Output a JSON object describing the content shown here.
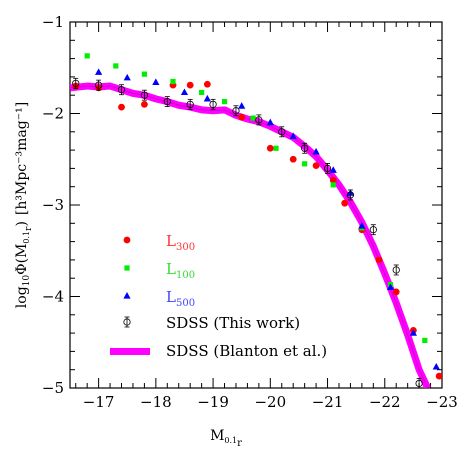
{
  "chart_data": {
    "type": "scatter",
    "xlabel": "M",
    "xlabel_sub": "0.1",
    "xlabel_sub2": "r",
    "ylabel_main": "log",
    "ylabel_sub": "10",
    "ylabel_phi": "Φ(M",
    "ylabel_sub3": "0.1",
    "ylabel_sub4": "r",
    "ylabel_close": ")",
    "ylabel_units": "[h³Mpc⁻³mag⁻¹]",
    "xlim": [
      -16.5,
      -23
    ],
    "ylim": [
      -5,
      -1
    ],
    "xticks": [
      -17,
      -18,
      -19,
      -20,
      -21,
      -22,
      -23
    ],
    "yticks": [
      -1,
      -2,
      -3,
      -4,
      -5
    ],
    "legend_position": "lower-left",
    "series": [
      {
        "name": "L",
        "name_sub": "300",
        "marker": "circle",
        "color": "#ff0000",
        "x": [
          -16.6,
          -17.0,
          -17.4,
          -17.8,
          -18.3,
          -18.6,
          -18.9,
          -19.5,
          -20.0,
          -20.4,
          -20.8,
          -21.1,
          -21.3,
          -21.6,
          -21.9,
          -22.2,
          -22.5,
          -22.95
        ],
        "y": [
          -1.7,
          -1.72,
          -1.93,
          -1.9,
          -1.69,
          -1.69,
          -1.68,
          -2.04,
          -2.38,
          -2.5,
          -2.57,
          -2.73,
          -2.98,
          -3.27,
          -3.6,
          -3.95,
          -4.37,
          -4.87
        ]
      },
      {
        "name": "L",
        "name_sub": "100",
        "marker": "square",
        "color": "#00ee00",
        "x": [
          -16.8,
          -17.3,
          -17.8,
          -18.3,
          -18.8,
          -19.2,
          -19.7,
          -20.1,
          -20.6,
          -21.1,
          -21.6,
          -22.1,
          -22.7
        ],
        "y": [
          -1.37,
          -1.48,
          -1.57,
          -1.65,
          -1.77,
          -1.87,
          -2.05,
          -2.38,
          -2.55,
          -2.78,
          -3.25,
          -3.87,
          -4.48
        ]
      },
      {
        "name": "L",
        "name_sub": "500",
        "marker": "triangle",
        "color": "#0000ff",
        "x": [
          -17.0,
          -17.5,
          -18.0,
          -18.5,
          -18.9,
          -19.5,
          -20.0,
          -20.4,
          -20.8,
          -21.1,
          -21.4,
          -21.6,
          -22.1,
          -22.5,
          -22.9
        ],
        "y": [
          -1.55,
          -1.61,
          -1.66,
          -1.77,
          -1.84,
          -1.92,
          -2.1,
          -2.25,
          -2.42,
          -2.62,
          -2.87,
          -3.23,
          -3.9,
          -4.4,
          -4.77
        ]
      },
      {
        "name": "SDSS (This work)",
        "marker": "open-circle-errorbar",
        "color": "#000000",
        "x": [
          -16.6,
          -17.0,
          -17.4,
          -17.8,
          -18.2,
          -18.6,
          -19.0,
          -19.4,
          -19.8,
          -20.2,
          -20.6,
          -21.0,
          -21.4,
          -21.8,
          -22.2,
          -22.6
        ],
        "y": [
          -1.67,
          -1.69,
          -1.74,
          -1.8,
          -1.87,
          -1.9,
          -1.9,
          -1.97,
          -2.07,
          -2.2,
          -2.38,
          -2.6,
          -2.89,
          -3.27,
          -3.71,
          -4.95
        ]
      },
      {
        "name": "SDSS (Blanton et al.)",
        "marker": "band",
        "color": "#ff00ff",
        "x": [
          -16.5,
          -16.8,
          -17.0,
          -17.2,
          -17.4,
          -17.6,
          -17.8,
          -18.0,
          -18.2,
          -18.4,
          -18.6,
          -18.8,
          -19.0,
          -19.2,
          -19.4,
          -19.6,
          -19.8,
          -20.0,
          -20.2,
          -20.4,
          -20.6,
          -20.8,
          -21.0,
          -21.2,
          -21.4,
          -21.6,
          -21.8,
          -22.0,
          -22.2,
          -22.4,
          -22.6,
          -22.75
        ],
        "y": [
          -1.72,
          -1.7,
          -1.71,
          -1.7,
          -1.74,
          -1.78,
          -1.8,
          -1.84,
          -1.87,
          -1.91,
          -1.93,
          -1.96,
          -1.97,
          -1.96,
          -2.02,
          -2.06,
          -2.09,
          -2.14,
          -2.2,
          -2.26,
          -2.36,
          -2.47,
          -2.62,
          -2.78,
          -2.97,
          -3.19,
          -3.45,
          -3.75,
          -4.07,
          -4.42,
          -4.8,
          -5.0
        ]
      }
    ]
  }
}
